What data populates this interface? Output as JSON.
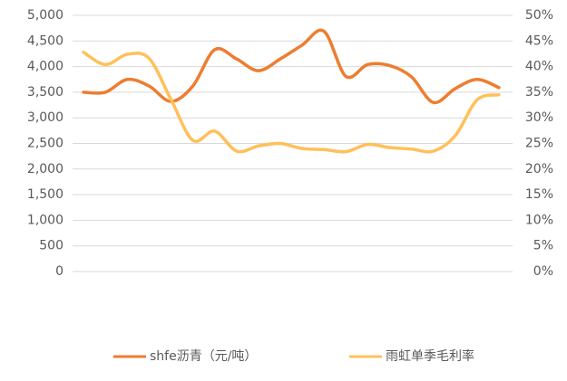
{
  "chart_data": {
    "type": "line",
    "categories": [
      null,
      null,
      null,
      null,
      null,
      null,
      null,
      null,
      null,
      null,
      null,
      null,
      null,
      null,
      null,
      null,
      null,
      null,
      null,
      null
    ],
    "series": [
      {
        "name": "shfe沥青（元/吨）",
        "color": "#ed7d31",
        "axis": "y",
        "values": [
          3500,
          3500,
          3750,
          3620,
          3320,
          3620,
          4330,
          4150,
          3920,
          4150,
          4420,
          4690,
          3810,
          4040,
          4020,
          3800,
          3300,
          3570,
          3750,
          3590
        ]
      },
      {
        "name": "雨虹单季毛利率",
        "color": "#ffc05a",
        "axis": "y2",
        "values": [
          42.8,
          40.4,
          42.4,
          41.6,
          33.6,
          25.6,
          27.4,
          23.5,
          24.5,
          25,
          24,
          23.8,
          23.4,
          24.8,
          24.2,
          23.9,
          23.5,
          26.5,
          33.5,
          34.5
        ]
      }
    ],
    "ylim": [
      0,
      5000
    ],
    "yticks": [
      0,
      500,
      {
        "value": 1000,
        "label": "1,000"
      },
      {
        "value": 1500,
        "label": "1,500"
      },
      {
        "value": 2000,
        "label": "2,000"
      },
      {
        "value": 2500,
        "label": "2,500"
      },
      {
        "value": 3000,
        "label": "3,000"
      },
      {
        "value": 3500,
        "label": "3,500"
      },
      {
        "value": 4000,
        "label": "4,000"
      },
      {
        "value": 4500,
        "label": "4,500"
      },
      {
        "value": 5000,
        "label": "5,000"
      }
    ],
    "y2lim": [
      0,
      50
    ],
    "y2ticks": [
      {
        "value": 0,
        "label": "0%"
      },
      {
        "value": 5,
        "label": "5%"
      },
      {
        "value": 10,
        "label": "10%"
      },
      {
        "value": 15,
        "label": "15%"
      },
      {
        "value": 20,
        "label": "20%"
      },
      {
        "value": 25,
        "label": "25%"
      },
      {
        "value": 30,
        "label": "30%"
      },
      {
        "value": 35,
        "label": "35%"
      },
      {
        "value": 40,
        "label": "40%"
      },
      {
        "value": 45,
        "label": "45%"
      },
      {
        "value": 50,
        "label": "50%"
      }
    ],
    "grid": true,
    "legend": "bottom"
  }
}
